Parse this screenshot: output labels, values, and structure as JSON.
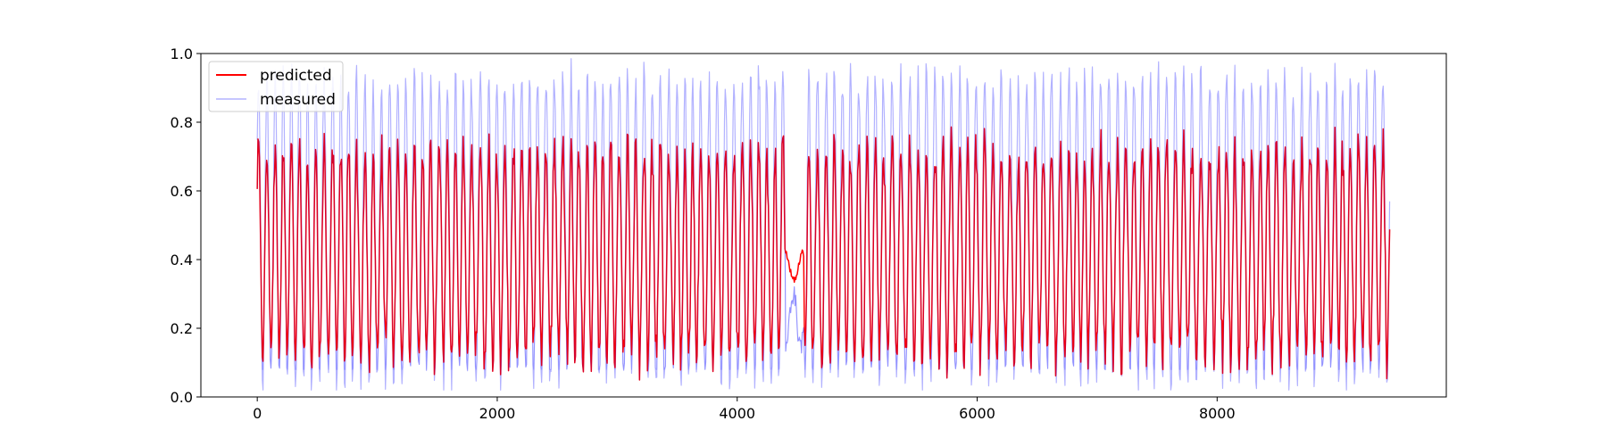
{
  "chart_data": {
    "type": "line",
    "title": "",
    "xlabel": "",
    "ylabel": "",
    "xlim": [
      -470,
      9910
    ],
    "ylim": [
      0.0,
      1.0
    ],
    "x_ticks": [
      0,
      2000,
      4000,
      6000,
      8000
    ],
    "x_tick_labels": [
      "0",
      "2000",
      "4000",
      "6000",
      "8000"
    ],
    "y_ticks": [
      0.0,
      0.2,
      0.4,
      0.6,
      0.8,
      1.0
    ],
    "y_tick_labels": [
      "0.0",
      "0.2",
      "0.4",
      "0.6",
      "0.8",
      "1.0"
    ],
    "grid": false,
    "legend_position": "top-left",
    "x_range": [
      0,
      9440
    ],
    "series": [
      {
        "name": "predicted",
        "color": "#ff0000",
        "opacity": 1.0,
        "style": "oscillating signal, alternating peaks (~0.60-0.78) and troughs (~0.05-0.30), nearly flat ~0.33-0.45 during gap around x=4400-4560",
        "approx_envelope": {
          "typical_max": 0.7,
          "typical_min": 0.1,
          "gap_start": 4400,
          "gap_end": 4560,
          "gap_level": 0.38
        }
      },
      {
        "name": "measured",
        "color": "#0000ff",
        "opacity": 0.3,
        "style": "oscillating signal, peaks ~0.80-0.98, troughs ~0.03-0.10, dips near 0.02 during gap around x=4400-4560",
        "approx_envelope": {
          "typical_max": 0.9,
          "typical_min": 0.05,
          "gap_start": 4400,
          "gap_end": 4560,
          "gap_level": 0.2
        }
      }
    ]
  },
  "legend": {
    "items": [
      {
        "label": "predicted",
        "color": "#ff0000"
      },
      {
        "label": "measured",
        "color": "#0000ff"
      }
    ]
  }
}
